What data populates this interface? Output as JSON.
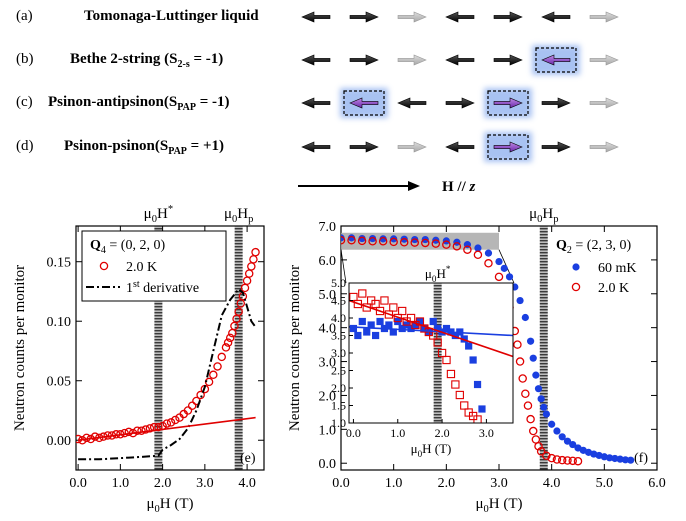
{
  "top": {
    "rows": [
      {
        "letter": "(a)",
        "title": "Tomonaga-Luttinger liquid",
        "title_html": null
      },
      {
        "letter": "(b)",
        "title": "Bethe 2-string (S",
        "sub": "2-s",
        "tail": " = -1)"
      },
      {
        "letter": "(c)",
        "title": "Psinon-antipsinon(S",
        "sub": "PAP",
        "tail": " = -1)"
      },
      {
        "letter": "(d)",
        "title": "Psinon-psinon(S",
        "sub": "PAP",
        "tail": " = +1)"
      }
    ],
    "arrow_rows": [
      [
        "L",
        "R",
        "r",
        "L",
        "R",
        "L",
        "r"
      ],
      [
        "L",
        "R",
        "r",
        "L",
        "R",
        "pL",
        "r"
      ],
      [
        "L",
        "pL",
        "L",
        "R",
        "pR",
        "R",
        "r"
      ],
      [
        "L",
        "R",
        "r",
        "L",
        "pR",
        "R",
        "r"
      ]
    ],
    "field_label": "H // z",
    "colors": {
      "dark": "#1a1a1a",
      "light": "#c8c8c8",
      "purple": "#8a3fc4",
      "glow": "#9ab8f0"
    }
  },
  "chart_data": [
    {
      "type": "scatter",
      "panel": "(e)",
      "xlabel": "μ0H (T)",
      "ylabel": "Neutron counts per monitor",
      "xlim": [
        -0.05,
        4.4
      ],
      "ylim": [
        -0.025,
        0.18
      ],
      "xticks": [
        "0.0",
        "1.0",
        "2.0",
        "3.0",
        "4.0"
      ],
      "yticks": [
        "0.00",
        "0.05",
        "0.10",
        "0.15"
      ],
      "top_labels": [
        "μ0H*",
        "μ0Hp"
      ],
      "vlines": [
        1.9,
        3.8
      ],
      "legend": {
        "q": "Q4 = (0, 2, 0)",
        "series": [
          "2.0 K",
          "1st derivative"
        ]
      },
      "series": [
        {
          "name": "2.0 K",
          "style": "open-circle",
          "color": "#e00000",
          "x": [
            0.0,
            0.1,
            0.2,
            0.3,
            0.4,
            0.5,
            0.6,
            0.7,
            0.8,
            0.9,
            1.0,
            1.1,
            1.2,
            1.3,
            1.4,
            1.5,
            1.6,
            1.7,
            1.8,
            1.9,
            2.0,
            2.1,
            2.2,
            2.3,
            2.4,
            2.5,
            2.6,
            2.7,
            2.8,
            2.9,
            3.0,
            3.1,
            3.2,
            3.3,
            3.4,
            3.5,
            3.55,
            3.6,
            3.65,
            3.7,
            3.75,
            3.8,
            3.85,
            3.9,
            3.95,
            4.0,
            4.05,
            4.1,
            4.15,
            4.2
          ],
          "y": [
            0.001,
            0.0,
            0.002,
            0.001,
            0.003,
            0.002,
            0.003,
            0.004,
            0.004,
            0.005,
            0.005,
            0.006,
            0.007,
            0.006,
            0.008,
            0.008,
            0.009,
            0.01,
            0.011,
            0.011,
            0.012,
            0.014,
            0.015,
            0.017,
            0.019,
            0.022,
            0.025,
            0.029,
            0.033,
            0.038,
            0.043,
            0.049,
            0.055,
            0.062,
            0.07,
            0.078,
            0.082,
            0.086,
            0.09,
            0.096,
            0.102,
            0.108,
            0.115,
            0.121,
            0.128,
            0.134,
            0.14,
            0.146,
            0.152,
            0.158
          ]
        },
        {
          "name": "1st derivative",
          "style": "dash-dot",
          "color": "#000000",
          "x": [
            0.0,
            0.5,
            1.0,
            1.5,
            1.9,
            2.0,
            2.2,
            2.4,
            2.6,
            2.8,
            3.0,
            3.2,
            3.4,
            3.6,
            3.8,
            3.9,
            4.0,
            4.1,
            4.2
          ],
          "y": [
            -0.016,
            -0.016,
            -0.015,
            -0.014,
            -0.013,
            -0.008,
            -0.004,
            0.001,
            0.01,
            0.025,
            0.045,
            0.075,
            0.105,
            0.118,
            0.127,
            0.124,
            0.112,
            0.1,
            0.095
          ]
        },
        {
          "name": "fit",
          "style": "line",
          "color": "#e00000",
          "x": [
            0.0,
            4.2
          ],
          "y": [
            0.0,
            0.019
          ]
        }
      ]
    },
    {
      "type": "scatter",
      "panel": "(f)",
      "xlabel": "μ0H (T)",
      "ylabel": "Neutron counts per monitor",
      "xlim": [
        0.0,
        6.0
      ],
      "ylim": [
        -0.2,
        7.0
      ],
      "xticks": [
        "0.0",
        "1.0",
        "2.0",
        "3.0",
        "4.0",
        "5.0",
        "6.0"
      ],
      "yticks": [
        "0.0",
        "1.0",
        "2.0",
        "3.0",
        "4.0",
        "5.0",
        "6.0",
        "7.0"
      ],
      "top_labels": [
        "μ0Hp"
      ],
      "vlines": [
        3.85
      ],
      "legend": {
        "q": "Q2 = (2, 3, 0)",
        "series": [
          "60 mK",
          "2.0 K"
        ]
      },
      "series": [
        {
          "name": "60 mK",
          "style": "filled-circle",
          "color": "#1a3fe0",
          "x": [
            0.0,
            0.2,
            0.4,
            0.6,
            0.8,
            1.0,
            1.2,
            1.4,
            1.6,
            1.8,
            2.0,
            2.2,
            2.4,
            2.6,
            2.8,
            3.0,
            3.1,
            3.2,
            3.3,
            3.4,
            3.5,
            3.6,
            3.65,
            3.7,
            3.75,
            3.8,
            3.85,
            3.9,
            4.0,
            4.1,
            4.2,
            4.3,
            4.4,
            4.5,
            4.6,
            4.7,
            4.8,
            4.9,
            5.0,
            5.1,
            5.2,
            5.3,
            5.4,
            5.5
          ],
          "y": [
            6.65,
            6.65,
            6.63,
            6.63,
            6.62,
            6.62,
            6.61,
            6.6,
            6.6,
            6.58,
            6.56,
            6.52,
            6.45,
            6.35,
            6.2,
            5.95,
            5.75,
            5.5,
            5.2,
            4.8,
            4.3,
            3.6,
            3.1,
            2.6,
            2.2,
            1.9,
            1.65,
            1.45,
            1.15,
            0.95,
            0.78,
            0.65,
            0.55,
            0.45,
            0.38,
            0.32,
            0.27,
            0.23,
            0.19,
            0.16,
            0.14,
            0.12,
            0.1,
            0.09
          ]
        },
        {
          "name": "2.0 K",
          "style": "open-circle",
          "color": "#e00000",
          "x": [
            0.0,
            0.2,
            0.4,
            0.6,
            0.8,
            1.0,
            1.2,
            1.4,
            1.6,
            1.8,
            2.0,
            2.2,
            2.4,
            2.6,
            2.8,
            3.0,
            3.1,
            3.2,
            3.3,
            3.35,
            3.4,
            3.45,
            3.5,
            3.55,
            3.6,
            3.65,
            3.7,
            3.75,
            3.8,
            3.9,
            4.0,
            4.1,
            4.2,
            4.3,
            4.4,
            4.5
          ],
          "y": [
            6.58,
            6.58,
            6.56,
            6.55,
            6.55,
            6.53,
            6.52,
            6.51,
            6.5,
            6.48,
            6.45,
            6.4,
            6.3,
            6.15,
            5.9,
            5.5,
            5.1,
            4.6,
            3.9,
            3.5,
            3.0,
            2.5,
            2.05,
            1.7,
            1.3,
            0.95,
            0.7,
            0.5,
            0.35,
            0.22,
            0.15,
            0.11,
            0.09,
            0.08,
            0.07,
            0.06
          ]
        }
      ],
      "inset": {
        "xlabel": "μ0H (T)",
        "xlim": [
          -0.1,
          3.6
        ],
        "ylim": [
          1.0,
          5.0
        ],
        "xticks": [
          "0.0",
          "1.0",
          "2.0",
          "3.0"
        ],
        "yticks": [
          "1.0",
          "1.5",
          "2.0",
          "2.5",
          "3.0",
          "3.5",
          "4.0",
          "4.5",
          "5.0"
        ],
        "top_label": "μ0H*",
        "vline": 1.9,
        "series": [
          {
            "name": "60 mK",
            "style": "filled-square",
            "color": "#1a3fe0",
            "x": [
              0.0,
              0.1,
              0.2,
              0.3,
              0.4,
              0.5,
              0.6,
              0.7,
              0.8,
              0.9,
              1.0,
              1.1,
              1.2,
              1.3,
              1.4,
              1.5,
              1.6,
              1.7,
              1.8,
              1.9,
              2.0,
              2.1,
              2.2,
              2.3,
              2.4,
              2.5,
              2.6,
              2.7,
              2.8,
              2.9
            ],
            "y": [
              3.7,
              3.5,
              3.9,
              3.6,
              3.8,
              3.5,
              3.9,
              3.7,
              3.8,
              3.6,
              3.9,
              3.7,
              3.8,
              3.7,
              3.8,
              3.9,
              3.7,
              3.6,
              3.9,
              3.7,
              3.6,
              3.7,
              3.6,
              3.5,
              3.6,
              3.4,
              3.2,
              2.8,
              2.1,
              1.4
            ]
          },
          {
            "name": "2.0 K",
            "style": "open-square",
            "color": "#e00000",
            "x": [
              0.0,
              0.1,
              0.2,
              0.3,
              0.4,
              0.5,
              0.6,
              0.7,
              0.8,
              0.9,
              1.0,
              1.1,
              1.2,
              1.3,
              1.4,
              1.5,
              1.6,
              1.7,
              1.8,
              1.9,
              2.0,
              2.1,
              2.2,
              2.3,
              2.4,
              2.5,
              2.6,
              2.7,
              2.8
            ],
            "y": [
              4.6,
              4.4,
              4.7,
              4.3,
              4.5,
              4.4,
              4.2,
              4.5,
              4.1,
              4.3,
              4.0,
              4.2,
              3.9,
              4.0,
              3.8,
              3.9,
              3.7,
              3.6,
              3.5,
              3.3,
              3.0,
              2.8,
              2.4,
              2.1,
              1.8,
              1.5,
              1.3,
              1.2,
              1.1
            ]
          },
          {
            "name": "fit-60mK",
            "style": "line",
            "color": "#1a3fe0",
            "x": [
              -0.1,
              3.6
            ],
            "y": [
              3.75,
              3.5
            ]
          },
          {
            "name": "fit-2K",
            "style": "line",
            "color": "#e00000",
            "x": [
              -0.1,
              3.6
            ],
            "y": [
              4.5,
              2.9
            ]
          }
        ]
      }
    }
  ]
}
